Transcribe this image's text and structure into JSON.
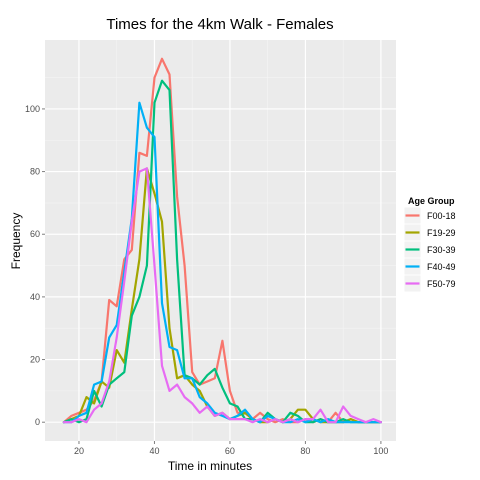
{
  "chart_data": {
    "type": "line",
    "title": "Times for the 4km Walk - Females",
    "xlabel": "Time in minutes",
    "ylabel": "Frequency",
    "xlim": [
      11,
      104
    ],
    "ylim": [
      -6,
      122
    ],
    "xticks": [
      20,
      40,
      60,
      80,
      100
    ],
    "yticks": [
      0,
      20,
      40,
      60,
      80,
      100
    ],
    "grid": true,
    "legend": {
      "title": "Age Group",
      "position": "right"
    },
    "series": [
      {
        "name": "F00-18",
        "color": "#f8766d",
        "x": [
          16,
          18,
          20,
          22,
          24,
          26,
          28,
          30,
          32,
          34,
          36,
          38,
          40,
          42,
          44,
          46,
          48,
          50,
          52,
          54,
          56,
          58,
          60,
          62,
          64,
          66,
          68,
          70,
          72,
          74,
          76,
          78,
          80,
          82,
          84,
          86,
          88,
          90,
          92,
          94,
          96,
          98,
          100
        ],
        "y": [
          0,
          2,
          3,
          4,
          7,
          13,
          39,
          37,
          52,
          55,
          86,
          85,
          110,
          116,
          111,
          72,
          50,
          16,
          12,
          13,
          14,
          26,
          10,
          3,
          3,
          1,
          3,
          1,
          0,
          1,
          0,
          0,
          1,
          0,
          1,
          0,
          3,
          0,
          1,
          0,
          0,
          0,
          0
        ]
      },
      {
        "name": "F19-29",
        "color": "#a3a500",
        "x": [
          16,
          18,
          20,
          22,
          24,
          26,
          28,
          30,
          32,
          34,
          36,
          38,
          40,
          42,
          44,
          46,
          48,
          50,
          52,
          54,
          56,
          58,
          60,
          62,
          64,
          66,
          68,
          70,
          72,
          74,
          76,
          78,
          80,
          82,
          84,
          86,
          88,
          90,
          92,
          94,
          96,
          98,
          100
        ],
        "y": [
          0,
          1,
          2,
          8,
          6,
          13,
          11,
          23,
          19,
          36,
          52,
          81,
          73,
          64,
          30,
          14,
          15,
          12,
          10,
          5,
          2,
          3,
          1,
          2,
          3,
          1,
          0,
          0,
          1,
          0,
          1,
          4,
          4,
          1,
          0,
          0,
          0,
          0,
          1,
          0,
          0,
          0,
          0
        ]
      },
      {
        "name": "F30-39",
        "color": "#00bf7d",
        "x": [
          16,
          18,
          20,
          22,
          24,
          26,
          28,
          30,
          32,
          34,
          36,
          38,
          40,
          42,
          44,
          46,
          48,
          50,
          52,
          54,
          56,
          58,
          60,
          62,
          64,
          66,
          68,
          70,
          72,
          74,
          76,
          78,
          80,
          82,
          84,
          86,
          88,
          90,
          92,
          94,
          96,
          98,
          100
        ],
        "y": [
          0,
          1,
          0,
          1,
          10,
          5,
          12,
          14,
          16,
          34,
          40,
          50,
          102,
          109,
          106,
          52,
          15,
          14,
          12,
          15,
          17,
          11,
          6,
          5,
          1,
          1,
          0,
          3,
          1,
          0,
          3,
          2,
          0,
          0,
          1,
          0,
          0,
          1,
          0,
          0,
          0,
          0,
          0
        ]
      },
      {
        "name": "F40-49",
        "color": "#00b0f6",
        "x": [
          16,
          18,
          20,
          22,
          24,
          26,
          28,
          30,
          32,
          34,
          36,
          38,
          40,
          42,
          44,
          46,
          48,
          50,
          52,
          54,
          56,
          58,
          60,
          62,
          64,
          66,
          68,
          70,
          72,
          74,
          76,
          78,
          80,
          82,
          84,
          86,
          88,
          90,
          92,
          94,
          96,
          98,
          100
        ],
        "y": [
          0,
          0,
          2,
          3,
          12,
          13,
          27,
          31,
          48,
          65,
          102,
          94,
          91,
          38,
          24,
          23,
          14,
          14,
          8,
          6,
          3,
          2,
          1,
          2,
          4,
          1,
          0,
          2,
          1,
          0,
          0,
          1,
          0,
          1,
          0,
          1,
          0,
          0,
          0,
          0,
          0,
          0,
          0
        ]
      },
      {
        "name": "F50-79",
        "color": "#e76bf3",
        "x": [
          16,
          18,
          20,
          22,
          24,
          26,
          28,
          30,
          32,
          34,
          36,
          38,
          40,
          42,
          44,
          46,
          48,
          50,
          52,
          54,
          56,
          58,
          60,
          62,
          64,
          66,
          68,
          70,
          72,
          74,
          76,
          78,
          80,
          82,
          84,
          86,
          88,
          90,
          92,
          94,
          96,
          98,
          100
        ],
        "y": [
          0,
          0,
          1,
          0,
          4,
          6,
          13,
          27,
          45,
          64,
          80,
          81,
          50,
          18,
          10,
          12,
          8,
          6,
          3,
          5,
          2,
          3,
          1,
          1,
          1,
          0,
          1,
          0,
          1,
          0,
          1,
          0,
          1,
          1,
          4,
          0,
          0,
          5,
          2,
          1,
          0,
          1,
          0
        ]
      }
    ]
  }
}
